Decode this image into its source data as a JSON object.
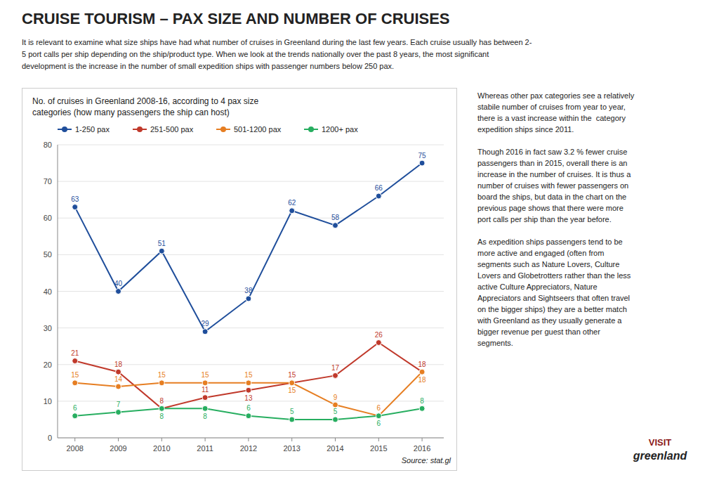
{
  "title": "CRUISE TOURISM – PAX SIZE AND NUMBER OF CRUISES",
  "intro": "It is relevant to examine what size ships have had what number of cruises in Greenland during the last few years. Each cruise usually has between 2-\n5 port calls per ship depending on the ship/product type. When we look at the trends nationally over the past 8 years, the most significant\ndevelopment is the increase in the number of small expedition ships with passenger numbers below 250 pax.",
  "paragraphs": [
    "Whereas other pax categories see a relatively\nstabile number of cruises from year to year,\nthere is a vast increase within the  category\nexpedition ships since 2011.",
    "Though 2016 in fact saw 3.2 % fewer cruise\npassengers than in 2015, overall there is an\nincrease in the number of cruises. It is thus a\nnumber of cruises with fewer passengers on\nboard the ships, but data in the chart on the\nprevious page shows that there were more\nport calls per ship than the year before.",
    "As expedition ships passengers tend to be\nmore active and engaged (often from\nsegments such as Nature Lovers, Culture\nLovers and Globetrotters rather than the less\nactive Culture Appreciators, Nature\nAppreciators and Sightseers that often travel\non the bigger ships) they are a better match\nwith Greenland as they usually generate a\nbigger revenue per guest than other\nsegments."
  ],
  "logo": [
    "VISIT",
    "greenland"
  ],
  "chart_data": {
    "type": "line",
    "title": "No. of cruises in Greenland 2008-16, according to 4 pax size\ncategories (how many passengers the ship can host)",
    "x": [
      2008,
      2009,
      2010,
      2011,
      2012,
      2013,
      2014,
      2015,
      2016
    ],
    "xlim": [
      2007.6,
      2016.5
    ],
    "xticks": [
      2008,
      2009,
      2010,
      2011,
      2012,
      2013,
      2014,
      2015,
      2016
    ],
    "ylim": [
      0,
      80
    ],
    "yticks": [
      0,
      10,
      20,
      30,
      40,
      50,
      60,
      70,
      80
    ],
    "series": [
      {
        "name": "1-250 pax",
        "color": "#1f4e9b",
        "marker": "circle",
        "values": [
          63,
          40,
          51,
          29,
          38,
          62,
          58,
          66,
          75
        ]
      },
      {
        "name": "251-500 pax",
        "color": "#c0392b",
        "marker": "circle",
        "values": [
          21,
          18,
          8,
          11,
          13,
          15,
          17,
          26,
          18
        ]
      },
      {
        "name": "501-1200 pax",
        "color": "#e67e22",
        "marker": "circle",
        "values": [
          15,
          14,
          15,
          15,
          15,
          15,
          9,
          6,
          18
        ]
      },
      {
        "name": "1200+ pax",
        "color": "#27ae60",
        "marker": "circle",
        "values": [
          6,
          7,
          8,
          8,
          6,
          5,
          5,
          6,
          8
        ]
      }
    ],
    "data_labels": true,
    "legend": "top",
    "grid": "y",
    "annotations": [
      "Source: stat.gl"
    ]
  }
}
